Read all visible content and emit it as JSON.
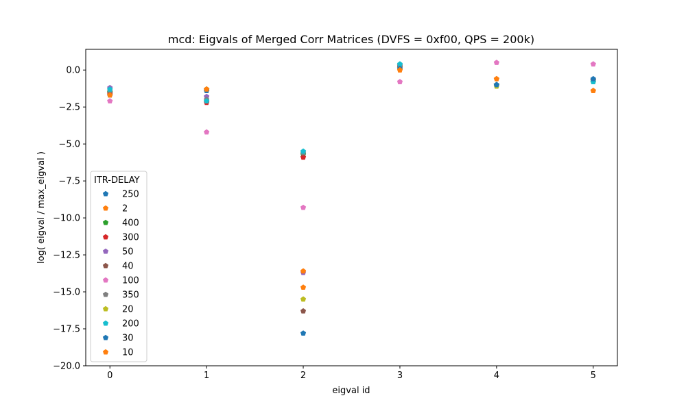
{
  "chart_data": {
    "type": "scatter",
    "title": "mcd: Eigvals of Merged Corr Matrices (DVFS = 0xf00, QPS = 200k)",
    "xlabel": "eigval id",
    "ylabel": "log( eigval / max_eigval )",
    "xlim": [
      -0.25,
      5.25
    ],
    "ylim": [
      -20.0,
      1.4
    ],
    "xticks": [
      0,
      1,
      2,
      3,
      4,
      5
    ],
    "yticks": [
      0.0,
      -2.5,
      -5.0,
      -7.5,
      -10.0,
      -12.5,
      -15.0,
      -17.5,
      -20.0
    ],
    "xtick_labels": [
      "0",
      "1",
      "2",
      "3",
      "4",
      "5"
    ],
    "ytick_labels": [
      "0.0",
      "−2.5",
      "−5.0",
      "−7.5",
      "−10.0",
      "−12.5",
      "−15.0",
      "−17.5",
      "−20.0"
    ],
    "grid": false,
    "marker": "pentagon",
    "legend": {
      "title": "ITR-DELAY",
      "placement": "lower-left"
    },
    "x": [
      0,
      1,
      2,
      3,
      4,
      5
    ],
    "series": [
      {
        "name": "250",
        "color": "#1f77b4",
        "values": [
          -1.6,
          -1.3,
          -5.7,
          0.3,
          -1.0,
          -0.7
        ]
      },
      {
        "name": "2",
        "color": "#ff7f0e",
        "values": [
          -1.7,
          -1.3,
          -14.7,
          0.0,
          -0.6,
          -1.4
        ]
      },
      {
        "name": "400",
        "color": "#2ca02c",
        "values": [
          -1.5,
          -1.4,
          -5.7,
          0.3,
          -1.0,
          -0.8
        ]
      },
      {
        "name": "300",
        "color": "#d62728",
        "values": [
          -1.6,
          -2.2,
          -5.9,
          0.2,
          -1.0,
          -0.7
        ]
      },
      {
        "name": "50",
        "color": "#9467bd",
        "values": [
          -1.2,
          -1.8,
          -13.7,
          0.3,
          -1.0,
          -0.7
        ]
      },
      {
        "name": "40",
        "color": "#8c564b",
        "values": [
          -1.7,
          -1.4,
          -16.3,
          0.2,
          -1.0,
          -0.7
        ]
      },
      {
        "name": "100",
        "color": "#e377c2",
        "values": [
          -2.1,
          -4.2,
          -9.3,
          -0.8,
          0.5,
          0.4
        ]
      },
      {
        "name": "350",
        "color": "#7f7f7f",
        "values": [
          -1.4,
          -2.0,
          -5.6,
          0.3,
          -1.0,
          -0.8
        ]
      },
      {
        "name": "20",
        "color": "#bcbd22",
        "values": [
          -1.7,
          -1.3,
          -15.5,
          0.1,
          -1.1,
          -0.8
        ]
      },
      {
        "name": "200",
        "color": "#17becf",
        "values": [
          -1.3,
          -2.1,
          -5.5,
          0.4,
          -1.0,
          -0.8
        ]
      },
      {
        "name": "30",
        "color": "#1f77b4",
        "values": [
          -1.7,
          -1.4,
          -17.8,
          0.1,
          -1.0,
          -0.6
        ]
      },
      {
        "name": "10",
        "color": "#ff7f0e",
        "values": [
          -1.7,
          -1.3,
          -13.6,
          0.0,
          -0.6,
          -1.4
        ]
      }
    ]
  }
}
